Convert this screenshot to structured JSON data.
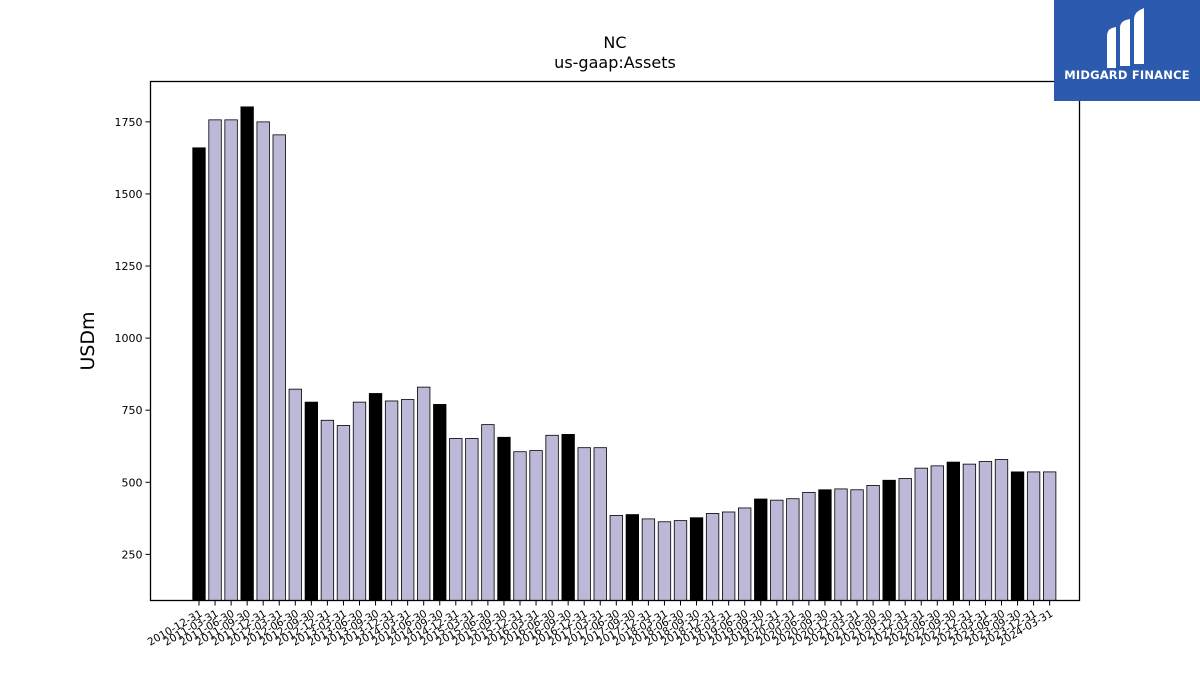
{
  "logo": {
    "text": "MIDGARD FINANCE",
    "background": "#2c5aae"
  },
  "chart_data": {
    "type": "bar",
    "title": "NC",
    "subtitle": "us-gaap:Assets",
    "ylabel": "USDm",
    "xlabel": "",
    "ylim": [
      90,
      1890
    ],
    "yticks": [
      250,
      500,
      750,
      1000,
      1250,
      1500,
      1750
    ],
    "grid": false,
    "colors": {
      "annual": "#000000",
      "quarterly": "#bcb8d8",
      "edge": "#000000"
    },
    "categories": [
      "2010-12-31",
      "2011-03-31",
      "2011-06-30",
      "2011-09-30",
      "2011-12-31",
      "2012-03-31",
      "2012-06-30",
      "2012-09-30",
      "2012-12-31",
      "2013-03-31",
      "2013-06-30",
      "2013-09-30",
      "2013-12-31",
      "2014-03-31",
      "2014-06-30",
      "2014-09-30",
      "2014-12-31",
      "2015-03-31",
      "2015-06-30",
      "2015-09-30",
      "2015-12-31",
      "2016-03-31",
      "2016-06-30",
      "2016-09-30",
      "2016-12-31",
      "2017-03-31",
      "2017-06-30",
      "2017-09-30",
      "2017-12-31",
      "2018-03-31",
      "2018-06-30",
      "2018-09-30",
      "2018-12-31",
      "2019-03-31",
      "2019-06-30",
      "2019-09-30",
      "2019-12-31",
      "2020-03-31",
      "2020-06-30",
      "2020-09-30",
      "2020-12-31",
      "2021-03-31",
      "2021-06-30",
      "2021-09-30",
      "2021-12-31",
      "2022-03-31",
      "2022-06-30",
      "2022-09-30",
      "2022-12-31",
      "2023-03-31",
      "2023-06-30",
      "2023-09-30",
      "2023-12-31",
      "2024-03-31"
    ],
    "values": [
      1660,
      1757,
      1757,
      1802,
      1750,
      1705,
      823,
      778,
      715,
      697,
      778,
      808,
      782,
      787,
      830,
      770,
      652,
      652,
      700,
      656,
      606,
      610,
      663,
      666,
      620,
      620,
      385,
      388,
      373,
      363,
      367,
      377,
      392,
      397,
      411,
      442,
      438,
      443,
      465,
      474,
      477,
      474,
      489,
      507,
      513,
      549,
      557,
      570,
      563,
      572,
      579,
      536,
      536,
      536
    ],
    "annual_flags": [
      1,
      0,
      0,
      1,
      0,
      0,
      0,
      1,
      0,
      0,
      0,
      1,
      0,
      0,
      0,
      1,
      0,
      0,
      0,
      1,
      0,
      0,
      0,
      1,
      0,
      0,
      0,
      1,
      0,
      0,
      0,
      1,
      0,
      0,
      0,
      1,
      0,
      0,
      0,
      1,
      0,
      0,
      0,
      1,
      0,
      0,
      0,
      1,
      0,
      0,
      0,
      1,
      0,
      0
    ]
  }
}
